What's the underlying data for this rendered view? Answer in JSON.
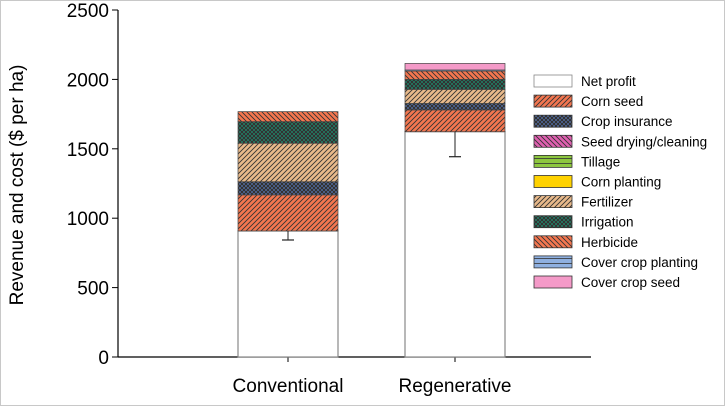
{
  "chart_data": {
    "type": "bar",
    "stacked": true,
    "title": "",
    "xlabel": "",
    "ylabel": "Revenue and cost ($ per ha)",
    "ylim": [
      0,
      2500
    ],
    "yticks": [
      0,
      500,
      1000,
      1500,
      2000,
      2500
    ],
    "grid": false,
    "legend_position": "right",
    "categories": [
      "Conventional",
      "Regenerative"
    ],
    "series": [
      {
        "name": "Net profit",
        "values": [
          908,
          1623
        ],
        "color": "#ffffff",
        "pattern": "none"
      },
      {
        "name": "Corn seed",
        "values": [
          260,
          157
        ],
        "color": "#f4764f",
        "pattern": "diag-up"
      },
      {
        "name": "Crop insurance",
        "values": [
          95,
          47
        ],
        "color": "#5b7bbd",
        "pattern": "dots"
      },
      {
        "name": "Seed drying/cleaning",
        "values": [
          0,
          0
        ],
        "color": "#e060b0",
        "pattern": "diag-down"
      },
      {
        "name": "Tillage",
        "values": [
          0,
          0
        ],
        "color": "#8dc63f",
        "pattern": "horizontal"
      },
      {
        "name": "Corn planting",
        "values": [
          0,
          0
        ],
        "color": "#ffd200",
        "pattern": "none"
      },
      {
        "name": "Fertilizer",
        "values": [
          277,
          101
        ],
        "color": "#e8b98a",
        "pattern": "diag-up"
      },
      {
        "name": "Irrigation",
        "values": [
          156,
          72
        ],
        "color": "#1a9a78",
        "pattern": "dots"
      },
      {
        "name": "Herbicide",
        "values": [
          72,
          60
        ],
        "color": "#f4764f",
        "pattern": "diag-down"
      },
      {
        "name": "Cover crop planting",
        "values": [
          0,
          8
        ],
        "color": "#8fb0e0",
        "pattern": "horizontal"
      },
      {
        "name": "Cover crop seed",
        "values": [
          0,
          47
        ],
        "color": "#f49ac8",
        "pattern": "none"
      }
    ],
    "error_bars": {
      "series": "Net profit",
      "lower": [
        843,
        1443
      ]
    }
  }
}
